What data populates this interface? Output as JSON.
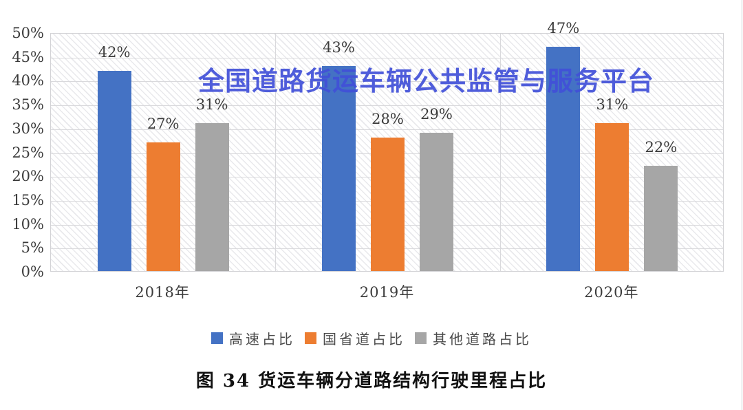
{
  "watermark": {
    "text": "全国道路货运车辆公共监管与服务平台",
    "color": "#4150d8"
  },
  "caption": {
    "text": "图 34 货运车辆分道路结构行驶里程占比"
  },
  "chart_data": {
    "type": "bar",
    "title": "",
    "categories": [
      "2018年",
      "2019年",
      "2020年"
    ],
    "series": [
      {
        "name": "高速占比",
        "color": "#4472C4",
        "values": [
          42,
          43,
          47
        ]
      },
      {
        "name": "国省道占比",
        "color": "#ED7D31",
        "values": [
          27,
          28,
          31
        ]
      },
      {
        "name": "其他道路占比",
        "color": "#A6A6A6",
        "values": [
          31,
          29,
          22
        ]
      }
    ],
    "data_label_suffix": "%",
    "ylim": [
      0,
      50
    ],
    "ytick_step": 5,
    "yticks": [
      "0%",
      "5%",
      "10%",
      "15%",
      "20%",
      "25%",
      "30%",
      "35%",
      "40%",
      "45%",
      "50%"
    ],
    "grid": true,
    "plot_background": "diagonal-hatch",
    "legend_position": "bottom",
    "gridline_color": "#d9d9dc"
  }
}
